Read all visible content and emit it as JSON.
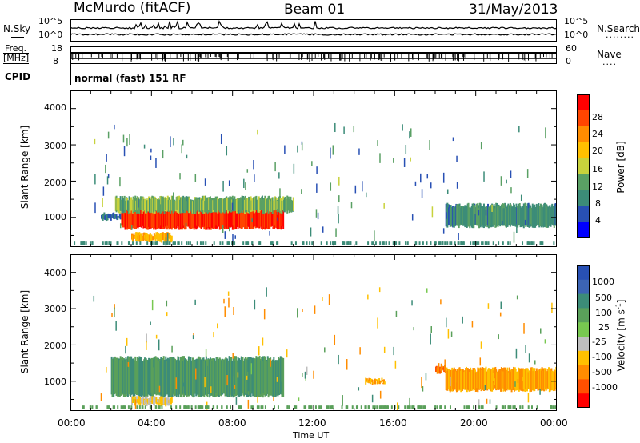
{
  "header": {
    "station": "McMurdo (fitACF)",
    "beam": "Beam 01",
    "date": "31/May/2013"
  },
  "noise_panel": {
    "left_label": "N.Sky",
    "right_label": "N.Search",
    "right_dots": "........",
    "ticks_left": [
      "10^5",
      "10^0"
    ],
    "ticks_right": [
      "10^5",
      "10^0"
    ]
  },
  "freq_panel": {
    "label_line1": "Freq.",
    "label_line2": "[MHz]",
    "ticks_left": [
      "18",
      "8"
    ],
    "right_label": "Nave",
    "right_dots": "....",
    "ticks_right": [
      "60",
      "0"
    ]
  },
  "cpid": {
    "label": "CPID",
    "value": "normal (fast) 151 RF"
  },
  "power_panel": {
    "ylabel": "Slant Range [km]",
    "yticks": [
      "4000",
      "3000",
      "2000",
      "1000"
    ],
    "colorbar_label": "Power [dB]",
    "colorbar_ticks": [
      "28",
      "24",
      "20",
      "16",
      "12",
      "8",
      "4"
    ],
    "colorbar_colors": [
      "#ff0000",
      "#ff4500",
      "#ff8c00",
      "#ffc000",
      "#c8d23c",
      "#5aa064",
      "#3c8c78",
      "#2850b4",
      "#0000ff"
    ]
  },
  "velocity_panel": {
    "ylabel": "Slant Range [km]",
    "yticks": [
      "4000",
      "3000",
      "2000",
      "1000"
    ],
    "colorbar_label": "Velocity [m s",
    "colorbar_sup": "-1",
    "colorbar_label_end": "]",
    "colorbar_ticks": [
      "1000",
      "500",
      "100",
      "25",
      "-25",
      "-100",
      "-500",
      "-1000"
    ],
    "colorbar_colors": [
      "#2850b4",
      "#3c64b4",
      "#3c8c78",
      "#5aa05a",
      "#78c850",
      "#bebebe",
      "#ffc000",
      "#ff8c00",
      "#ff5000",
      "#ff0000"
    ]
  },
  "xaxis": {
    "label": "Time UT",
    "ticks": [
      "00:00",
      "04:00",
      "08:00",
      "12:00",
      "16:00",
      "20:00",
      "00:00"
    ]
  },
  "chart_data": {
    "type": "heatmap",
    "x_range_hours": [
      0,
      24
    ],
    "y_range_km": [
      180,
      4500
    ],
    "power_scatter_regions": [
      {
        "t_start": 1.5,
        "t_end": 2.5,
        "range_lo": 900,
        "range_hi": 1150,
        "power_db": 6
      },
      {
        "t_start": 2.5,
        "t_end": 10.5,
        "range_lo": 650,
        "range_hi": 1350,
        "power_db": 28
      },
      {
        "t_start": 2.2,
        "t_end": 11.0,
        "range_lo": 1100,
        "range_hi": 1600,
        "power_db": 12
      },
      {
        "t_start": 3.0,
        "t_end": 5.0,
        "range_lo": 300,
        "range_hi": 600,
        "power_db": 20
      },
      {
        "t_start": 18.5,
        "t_end": 24.0,
        "range_lo": 700,
        "range_hi": 1400,
        "power_db": 8
      }
    ],
    "velocity_scatter_regions": [
      {
        "t_start": 2.0,
        "t_end": 10.5,
        "range_lo": 550,
        "range_hi": 1700,
        "velocity_ms": 100
      },
      {
        "t_start": 3.0,
        "t_end": 5.0,
        "range_lo": 300,
        "range_hi": 600,
        "velocity_ms": -25
      },
      {
        "t_start": 14.5,
        "t_end": 15.5,
        "range_lo": 900,
        "range_hi": 1100,
        "velocity_ms": -100
      },
      {
        "t_start": 18.0,
        "t_end": 18.5,
        "range_lo": 1200,
        "range_hi": 1500,
        "velocity_ms": -500
      },
      {
        "t_start": 18.5,
        "t_end": 24.0,
        "range_lo": 700,
        "range_hi": 1400,
        "velocity_ms": -100
      }
    ]
  }
}
